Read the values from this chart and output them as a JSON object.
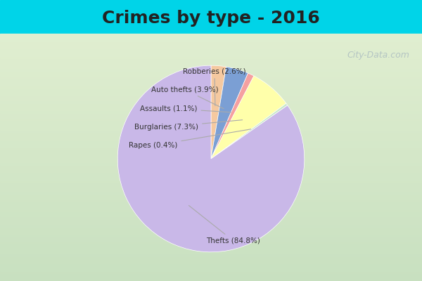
{
  "title": "Crimes by type - 2016",
  "title_fontsize": 18,
  "title_fontweight": "bold",
  "labels": [
    "Thefts",
    "Burglaries",
    "Auto thefts",
    "Robberies",
    "Assaults",
    "Rapes"
  ],
  "percentages": [
    84.8,
    7.3,
    3.9,
    2.6,
    1.1,
    0.4
  ],
  "colors": [
    "#c9b8e8",
    "#ffffaa",
    "#7b9fd4",
    "#f5c9a0",
    "#f5a0a0",
    "#c9e8c9"
  ],
  "label_texts": [
    "Thefts (84.8%)",
    "Burglaries (7.3%)",
    "Auto thefts (3.9%)",
    "Robberies (2.6%)",
    "Assaults (1.1%)",
    "Rapes (0.4%)"
  ],
  "background_top": "#00d4e8",
  "background_main_top": "#d4e8d0",
  "background_main_bottom": "#e8f0d0",
  "startangle": 90,
  "watermark": "City-Data.com"
}
